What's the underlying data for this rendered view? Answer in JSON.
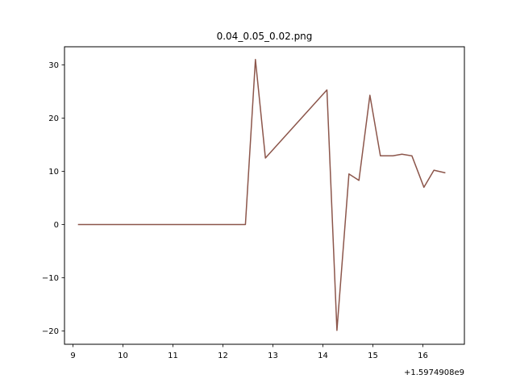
{
  "chart_data": {
    "type": "line",
    "title": "0.04_0.05_0.02.png",
    "xlabel": "",
    "ylabel": "",
    "x_offset_label": "+1.5974908e9",
    "xlim": [
      8.83,
      16.83
    ],
    "ylim": [
      -22.5,
      33.4
    ],
    "xticks": [
      9,
      10,
      11,
      12,
      13,
      14,
      15,
      16
    ],
    "yticks": [
      -20,
      -10,
      0,
      10,
      20,
      30
    ],
    "xtick_labels": [
      "9",
      "10",
      "11",
      "12",
      "13",
      "14",
      "15",
      "16"
    ],
    "ytick_labels": [
      "−20",
      "−10",
      "0",
      "10",
      "20",
      "30"
    ],
    "grid": false,
    "series": [
      {
        "color": "#8c564b",
        "x": [
          9.1,
          12.45,
          12.65,
          12.85,
          14.08,
          14.28,
          14.52,
          14.72,
          14.94,
          15.15,
          15.4,
          15.58,
          15.78,
          16.02,
          16.22,
          16.45
        ],
        "y": [
          0,
          0,
          31,
          12.5,
          25.3,
          -19.9,
          9.5,
          8.3,
          24.3,
          12.9,
          12.9,
          13.2,
          12.9,
          7.0,
          10.2,
          9.7
        ]
      }
    ]
  }
}
